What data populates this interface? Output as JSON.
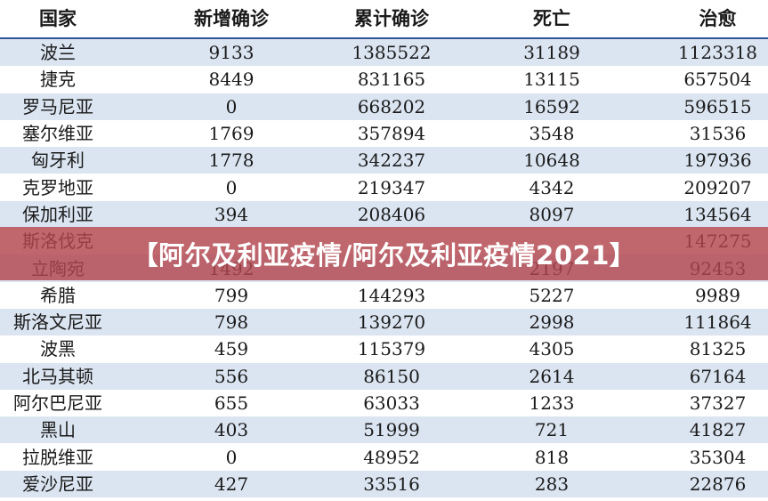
{
  "table": {
    "headers": [
      "国家",
      "新增确诊",
      "累计确诊",
      "死亡",
      "治愈"
    ],
    "rows": [
      [
        "波兰",
        "9133",
        "1385522",
        "31189",
        "1123318"
      ],
      [
        "捷克",
        "8449",
        "831165",
        "13115",
        "657504"
      ],
      [
        "罗马尼亚",
        "0",
        "668202",
        "16592",
        "596515"
      ],
      [
        "塞尔维亚",
        "1769",
        "357894",
        "3548",
        "31536"
      ],
      [
        "匈牙利",
        "1778",
        "342237",
        "10648",
        "197936"
      ],
      [
        "克罗地亚",
        "0",
        "219347",
        "4342",
        "209207"
      ],
      [
        "保加利亚",
        "394",
        "208406",
        "8097",
        "134564"
      ],
      [
        "斯洛伐克",
        "",
        "",
        "",
        "147275"
      ],
      [
        "立陶宛",
        "1492",
        "",
        "2197",
        "92453"
      ],
      [
        "希腊",
        "799",
        "144293",
        "5227",
        "9989"
      ],
      [
        "斯洛文尼亚",
        "798",
        "139270",
        "2998",
        "111864"
      ],
      [
        "波黑",
        "459",
        "115379",
        "4305",
        "81325"
      ],
      [
        "北马其顿",
        "556",
        "86150",
        "2614",
        "67164"
      ],
      [
        "阿尔巴尼亚",
        "655",
        "63033",
        "1233",
        "37327"
      ],
      [
        "黑山",
        "403",
        "51999",
        "721",
        "41827"
      ],
      [
        "拉脱维亚",
        "0",
        "48952",
        "818",
        "35304"
      ],
      [
        "爱沙尼亚",
        "427",
        "33516",
        "283",
        "22876"
      ]
    ]
  },
  "banner": {
    "text": "【阿尔及利亚疫情/阿尔及利亚疫情2021】"
  }
}
